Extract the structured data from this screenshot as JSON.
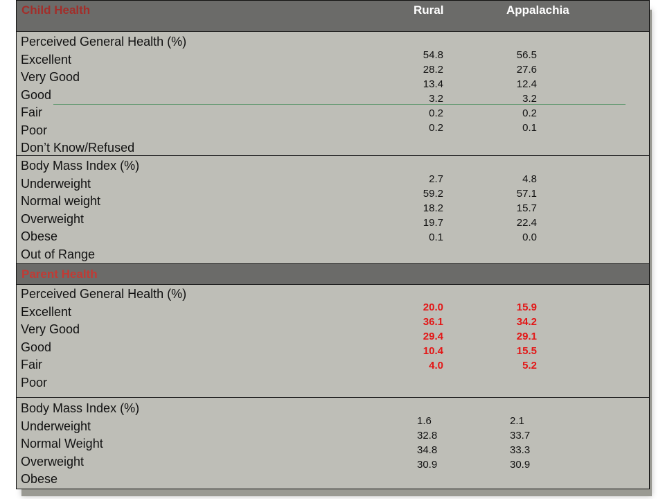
{
  "child_section": {
    "title": "Child Health",
    "columns": {
      "rural": "Rural",
      "appalachia": "Appalachia"
    },
    "general_health": {
      "heading": "Perceived General Health (%)",
      "rows": [
        {
          "label": "Excellent",
          "rural": "54.8",
          "appalachia": "56.5"
        },
        {
          "label": "Very Good",
          "rural": "28.2",
          "appalachia": "27.6"
        },
        {
          "label": "Good",
          "rural": "13.4",
          "appalachia": "12.4"
        },
        {
          "label": "Fair",
          "rural": "3.2",
          "appalachia": "3.2"
        },
        {
          "label": "Poor",
          "rural": "0.2",
          "appalachia": "0.2"
        },
        {
          "label": "Don’t Know/Refused",
          "rural": "0.2",
          "appalachia": "0.1"
        }
      ]
    },
    "bmi": {
      "heading": "Body Mass Index (%)",
      "rows": [
        {
          "label": "Underweight",
          "rural": "2.7",
          "appalachia": "4.8"
        },
        {
          "label": "Normal weight",
          "rural": "59.2",
          "appalachia": "57.1"
        },
        {
          "label": "Overweight",
          "rural": "18.2",
          "appalachia": "15.7"
        },
        {
          "label": "Obese",
          "rural": "19.7",
          "appalachia": "22.4"
        },
        {
          "label": "Out of Range",
          "rural": "0.1",
          "appalachia": "0.0"
        }
      ]
    }
  },
  "parent_section": {
    "title": "Parent Health",
    "general_health": {
      "heading": "Perceived General Health (%)",
      "rows": [
        {
          "label": "Excellent",
          "rural": "20.0",
          "appalachia": "15.9"
        },
        {
          "label": "Very Good",
          "rural": "36.1",
          "appalachia": "34.2"
        },
        {
          "label": "Good",
          "rural": "29.4",
          "appalachia": "29.1"
        },
        {
          "label": "Fair",
          "rural": "10.4",
          "appalachia": "15.5"
        },
        {
          "label": "Poor",
          "rural": "4.0",
          "appalachia": "5.2"
        }
      ]
    },
    "bmi": {
      "heading": "Body Mass Index (%)",
      "rows": [
        {
          "label": "Underweight",
          "rural": "1.6",
          "appalachia": "2.1"
        },
        {
          "label": "Normal Weight",
          "rural": "32.8",
          "appalachia": "33.7"
        },
        {
          "label": "Overweight",
          "rural": "34.8",
          "appalachia": "33.3"
        },
        {
          "label": "Obese",
          "rural": "30.9",
          "appalachia": "30.9"
        }
      ]
    }
  },
  "colors": {
    "table_background": "#bebeb7",
    "header_background": "#6b6b69",
    "child_title": "#a22e2a",
    "parent_title": "#c23a34",
    "highlight_values": "#e31616",
    "green_rule": "#4b8f5f"
  }
}
